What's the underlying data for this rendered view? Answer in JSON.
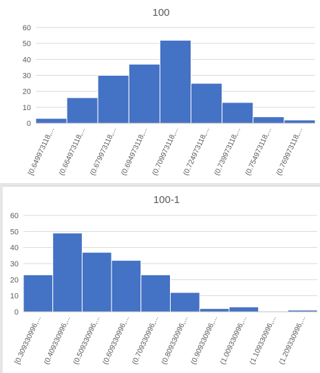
{
  "chart_data": [
    {
      "type": "bar",
      "title": "100",
      "categories": [
        "[0.649973118,...",
        "(0.664973118,...",
        "(0.679973118,...",
        "(0.694973118,...",
        "(0.709973118,...",
        "(0.724973118,...",
        "(0.739973118,...",
        "(0.754973118,...",
        "(0.769973118,..."
      ],
      "values": [
        3,
        16,
        30,
        37,
        52,
        25,
        13,
        4,
        2
      ],
      "ylim": [
        0,
        60
      ],
      "yticks": [
        0,
        10,
        20,
        30,
        40,
        50,
        60
      ],
      "grid": true,
      "bar_color": "#4472c4",
      "xlabel": "",
      "ylabel": ""
    },
    {
      "type": "bar",
      "title": "100-1",
      "categories": [
        "[0.309330996,...",
        "(0.409330996,...",
        "(0.509330996,...",
        "(0.609330996,...",
        "(0.709330996,...",
        "(0.809330996,...",
        "(0.909330996,...",
        "(1.009330996,...",
        "(1.109330996,...",
        "(1.209330996,..."
      ],
      "values": [
        23,
        49,
        37,
        32,
        23,
        12,
        2,
        3,
        0,
        1
      ],
      "ylim": [
        0,
        60
      ],
      "yticks": [
        0,
        10,
        20,
        30,
        40,
        50,
        60
      ],
      "grid": true,
      "bar_color": "#4472c4",
      "xlabel": "",
      "ylabel": ""
    }
  ]
}
